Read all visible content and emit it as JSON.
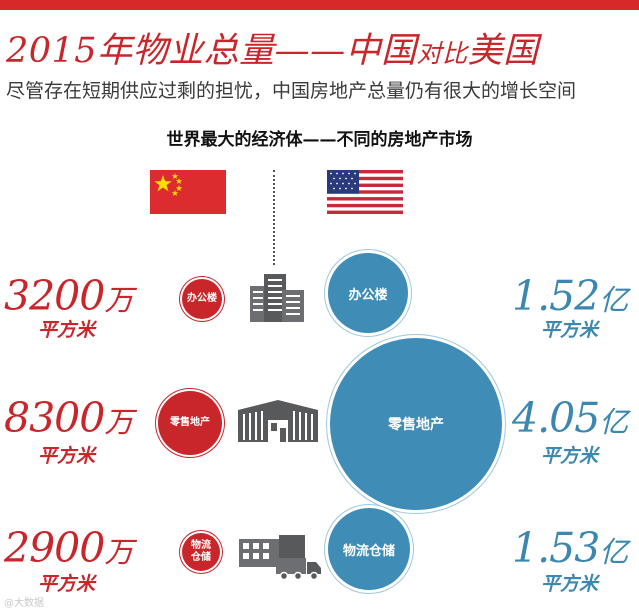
{
  "header": {
    "title_main": "2015年物业总量——中国",
    "title_small": "对比",
    "title_end": "美国",
    "subtitle": "尽管存在短期供应过剩的担忧，中国房地产总量仍有很大的增长空间",
    "section_title": "世界最大的经济体——不同的房地产市场"
  },
  "chart_data": {
    "type": "bubble",
    "series": [
      {
        "name": "中国",
        "unit": "平方米",
        "values": [
          32000000,
          83000000,
          29000000
        ]
      },
      {
        "name": "美国",
        "unit": "平方米",
        "values": [
          152000000,
          405000000,
          153000000
        ]
      }
    ],
    "categories": [
      "办公楼",
      "零售地产",
      "物流仓储"
    ],
    "rows": [
      {
        "cn_value": "3200",
        "cn_scale": "万",
        "cn_unit": "平方米",
        "cn_badge": "办公楼",
        "us_value": "1.52",
        "us_scale": "亿",
        "us_unit": "平方米",
        "us_label": "办公楼"
      },
      {
        "cn_value": "8300",
        "cn_scale": "万",
        "cn_unit": "平方米",
        "cn_badge": "零售地产",
        "us_value": "4.05",
        "us_scale": "亿",
        "us_unit": "平方米",
        "us_label": "零售地产"
      },
      {
        "cn_value": "2900",
        "cn_scale": "万",
        "cn_unit": "平方米",
        "cn_badge_line1": "物流",
        "cn_badge_line2": "仓储",
        "us_value": "1.53",
        "us_scale": "亿",
        "us_unit": "平方米",
        "us_label": "物流仓储"
      }
    ]
  },
  "colors": {
    "china": "#c8262b",
    "usa": "#3f8db7",
    "us_text": "#3b87b0",
    "accent_bar": "#d7282a"
  },
  "icons": [
    "china-flag-icon",
    "usa-flag-icon",
    "office-building-icon",
    "warehouse-icon",
    "logistics-building-icon",
    "truck-icon"
  ],
  "watermark": "@大数据"
}
